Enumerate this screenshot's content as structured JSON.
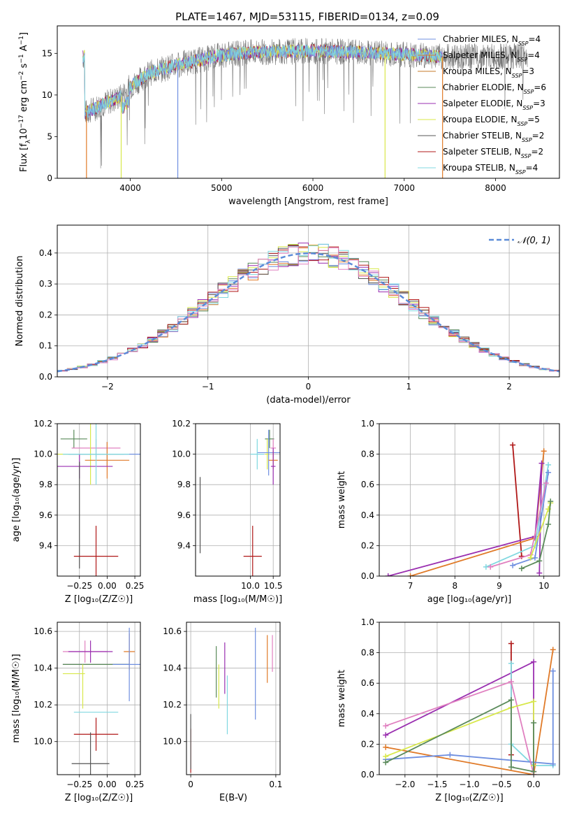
{
  "colors": {
    "chabrier_miles": "#6f8fe0",
    "salpeter_miles": "#e07a28",
    "kroupa_miles": "#c47a2a",
    "chabrier_elodie": "#5a8a5a",
    "salpeter_elodie": "#9a2fb0",
    "kroupa_elodie": "#d8e84a",
    "chabrier_stelib": "#555555",
    "salpeter_stelib": "#b01818",
    "kroupa_stelib": "#80d8e0",
    "pink": "#e080c0",
    "normal_curve": "#5b8bd8",
    "grid": "#b0b0b0"
  },
  "chart_data": [
    {
      "id": "spectrum",
      "type": "line",
      "title": "PLATE=1467, MJD=53115, FIBERID=0134, z=0.09",
      "xlabel": "wavelength [Angstrom, rest frame]",
      "ylabel_parts": [
        "Flux [f",
        "λ",
        "10",
        "−17",
        " erg cm",
        "−2",
        " s",
        "−1",
        " A",
        "−1",
        "]"
      ],
      "xlim": [
        3200,
        8700
      ],
      "ylim": [
        0,
        18.3
      ],
      "xticks": [
        4000,
        5000,
        6000,
        7000,
        8000
      ],
      "yticks": [
        0,
        5,
        10,
        15
      ],
      "grid": false,
      "legend_position": "right",
      "legend": [
        {
          "label": "Chabrier MILES, N",
          "sub": "SSP",
          "value": "=4",
          "color_key": "chabrier_miles"
        },
        {
          "label": "Salpeter MILES, N",
          "sub": "SSP",
          "value": "=4",
          "color_key": "salpeter_miles"
        },
        {
          "label": "Kroupa MILES, N",
          "sub": "SSP",
          "value": "=3",
          "color_key": "kroupa_miles"
        },
        {
          "label": "Chabrier ELODIE, N",
          "sub": "SSP",
          "value": "=6",
          "color_key": "chabrier_elodie"
        },
        {
          "label": "Salpeter ELODIE, N",
          "sub": "SSP",
          "value": "=3",
          "color_key": "salpeter_elodie"
        },
        {
          "label": "Kroupa ELODIE, N",
          "sub": "SSP",
          "value": "=5",
          "color_key": "kroupa_elodie"
        },
        {
          "label": "Chabrier STELIB, N",
          "sub": "SSP",
          "value": "=2",
          "color_key": "chabrier_stelib"
        },
        {
          "label": "Salpeter STELIB, N",
          "sub": "SSP",
          "value": "=2",
          "color_key": "salpeter_stelib"
        },
        {
          "label": "Kroupa STELIB, N",
          "sub": "SSP",
          "value": "=4",
          "color_key": "kroupa_stelib"
        }
      ],
      "continuum": {
        "x": [
          3500,
          3700,
          3900,
          4000,
          4200,
          4500,
          4800,
          5000,
          5300,
          5600,
          6000,
          6500,
          7000,
          7400
        ],
        "y": [
          7.8,
          8.9,
          9.8,
          11.0,
          12.6,
          13.6,
          14.3,
          14.8,
          15.1,
          15.2,
          15.3,
          15.1,
          14.9,
          14.6
        ]
      },
      "drops": [
        {
          "x": 3520,
          "color_key": "salpeter_miles"
        },
        {
          "x": 3900,
          "color_key": "kroupa_elodie"
        },
        {
          "x": 4520,
          "color_key": "chabrier_miles"
        },
        {
          "x": 6790,
          "color_key": "kroupa_elodie"
        },
        {
          "x": 7420,
          "color_key": "salpeter_miles"
        }
      ]
    },
    {
      "id": "residuals",
      "type": "histogram",
      "xlabel": "(data-model)/error",
      "ylabel": "Normed distribution",
      "xlim": [
        -2.5,
        2.5
      ],
      "ylim": [
        0,
        0.49
      ],
      "xticks": [
        -2,
        -1,
        0,
        1,
        2
      ],
      "xtick_labels": [
        "−2",
        "−1",
        "0",
        "1",
        "2"
      ],
      "yticks": [
        0.0,
        0.1,
        0.2,
        0.3,
        0.4
      ],
      "grid": true,
      "legend_position": "upper right",
      "legend_label": "𝒩(0, 1)",
      "bin_width": 0.1
    },
    {
      "id": "age_vs_Z",
      "type": "errorbar",
      "xlabel": "Z [log₁₀(Z/Z☉)]",
      "ylabel": "age  [log₁₀(age/yr)]",
      "xlim": [
        -0.45,
        0.3
      ],
      "ylim": [
        9.2,
        10.2
      ],
      "xticks": [
        -0.25,
        0.0,
        0.25
      ],
      "xtick_labels": [
        "−0.25",
        "0.00",
        "0.25"
      ],
      "yticks": [
        9.4,
        9.6,
        9.8,
        10.0,
        10.2
      ],
      "grid": true,
      "points": [
        {
          "x": -0.3,
          "xerr": 0.12,
          "y": 10.1,
          "yerr": 0.06,
          "color_key": "chabrier_elodie"
        },
        {
          "x": -0.1,
          "xerr": 0.22,
          "y": 10.04,
          "yerr": 0.06,
          "color_key": "pink"
        },
        {
          "x": -0.15,
          "xerr": 0.3,
          "y": 10.0,
          "yerr": 0.2,
          "color_key": "kroupa_elodie"
        },
        {
          "x": 0.0,
          "xerr": 0.35,
          "y": 10.0,
          "yerr": 0.08,
          "color_key": "chabrier_miles"
        },
        {
          "x": 0.0,
          "xerr": 0.2,
          "y": 9.96,
          "yerr": 0.12,
          "color_key": "salpeter_miles"
        },
        {
          "x": -0.25,
          "xerr": 0.3,
          "y": 9.92,
          "yerr": 0.08,
          "color_key": "salpeter_elodie"
        },
        {
          "x": -0.1,
          "xerr": 0.3,
          "y": 10.0,
          "yerr": 0.2,
          "color_key": "kroupa_stelib"
        },
        {
          "x": -0.25,
          "xerr": 0.0,
          "y": 9.6,
          "yerr": 0.35,
          "color_key": "chabrier_stelib"
        },
        {
          "x": -0.1,
          "xerr": 0.2,
          "y": 9.33,
          "yerr": 0.2,
          "color_key": "salpeter_stelib"
        }
      ]
    },
    {
      "id": "age_vs_mass",
      "type": "errorbar",
      "xlabel": "mass [log₁₀(M/M☉)]",
      "ylabel": "",
      "xlim": [
        8.8,
        10.65
      ],
      "ylim": [
        9.2,
        10.2
      ],
      "xticks": [
        10.0,
        10.5
      ],
      "xtick_labels": [
        "10.0",
        "10.5"
      ],
      "yticks": [
        9.4,
        9.6,
        9.8,
        10.0,
        10.2
      ],
      "grid": true,
      "points": [
        {
          "x": 10.42,
          "xerr": 0.1,
          "y": 10.1,
          "yerr": 0.06,
          "color_key": "chabrier_elodie"
        },
        {
          "x": 10.5,
          "xerr": 0.06,
          "y": 10.04,
          "yerr": 0.06,
          "color_key": "pink"
        },
        {
          "x": 10.37,
          "xerr": 0.05,
          "y": 10.0,
          "yerr": 0.1,
          "color_key": "kroupa_elodie"
        },
        {
          "x": 10.4,
          "xerr": 0.25,
          "y": 10.01,
          "yerr": 0.15,
          "color_key": "chabrier_miles"
        },
        {
          "x": 10.5,
          "xerr": 0.1,
          "y": 9.96,
          "yerr": 0.06,
          "color_key": "salpeter_miles"
        },
        {
          "x": 10.5,
          "xerr": 0.05,
          "y": 9.92,
          "yerr": 0.12,
          "color_key": "salpeter_elodie"
        },
        {
          "x": 10.15,
          "xerr": 0.15,
          "y": 10.0,
          "yerr": 0.1,
          "color_key": "kroupa_stelib"
        },
        {
          "x": 8.9,
          "xerr": 0.0,
          "y": 9.6,
          "yerr": 0.25,
          "color_key": "chabrier_stelib"
        },
        {
          "x": 10.05,
          "xerr": 0.2,
          "y": 9.33,
          "yerr": 0.2,
          "color_key": "salpeter_stelib"
        }
      ]
    },
    {
      "id": "mass_weight_vs_age",
      "type": "line",
      "xlabel": "age  [log₁₀(age/yr)]",
      "ylabel": "mass weight",
      "xlim": [
        6.3,
        10.35
      ],
      "ylim": [
        0,
        1
      ],
      "xticks": [
        7,
        8,
        9,
        10
      ],
      "yticks": [
        0.0,
        0.2,
        0.4,
        0.6,
        0.8,
        1.0
      ],
      "grid": true,
      "series": [
        {
          "color_key": "salpeter_stelib",
          "x": [
            9.3,
            9.5
          ],
          "y": [
            0.86,
            0.13
          ]
        },
        {
          "color_key": "salpeter_miles",
          "x": [
            7.0,
            9.8,
            10.0
          ],
          "y": [
            0.0,
            0.25,
            0.82
          ]
        },
        {
          "color_key": "salpeter_elodie",
          "x": [
            6.5,
            9.8,
            9.95,
            9.9
          ],
          "y": [
            0.0,
            0.26,
            0.74,
            0.02
          ]
        },
        {
          "color_key": "kroupa_stelib",
          "x": [
            8.7,
            9.8,
            10.1
          ],
          "y": [
            0.06,
            0.2,
            0.73
          ]
        },
        {
          "color_key": "chabrier_miles",
          "x": [
            9.3,
            9.8,
            10.1
          ],
          "y": [
            0.07,
            0.12,
            0.68
          ]
        },
        {
          "color_key": "pink",
          "x": [
            8.8,
            9.7,
            10.05
          ],
          "y": [
            0.06,
            0.14,
            0.61
          ]
        },
        {
          "color_key": "kroupa_elodie",
          "x": [
            9.7,
            10.1,
            10.15
          ],
          "y": [
            0.12,
            0.44,
            0.48
          ]
        },
        {
          "color_key": "chabrier_elodie",
          "x": [
            9.5,
            9.9,
            10.1,
            10.15
          ],
          "y": [
            0.05,
            0.1,
            0.34,
            0.49
          ]
        }
      ]
    },
    {
      "id": "mass_vs_Z",
      "type": "errorbar",
      "xlabel": "Z [log₁₀(Z/Z☉)]",
      "ylabel": "mass [log₁₀(M/M☉)]",
      "xlim": [
        -0.45,
        0.3
      ],
      "ylim": [
        9.82,
        10.65
      ],
      "xticks": [
        -0.25,
        0.0,
        0.25
      ],
      "xtick_labels": [
        "−0.25",
        "0.00",
        "0.25"
      ],
      "yticks": [
        10.0,
        10.2,
        10.4,
        10.6
      ],
      "grid": true,
      "points": [
        {
          "x": -0.2,
          "xerr": 0.2,
          "y": 10.49,
          "yerr": 0.06,
          "color_key": "pink"
        },
        {
          "x": -0.15,
          "xerr": 0.2,
          "y": 10.49,
          "yerr": 0.06,
          "color_key": "salpeter_elodie"
        },
        {
          "x": 0.2,
          "xerr": 0.05,
          "y": 10.49,
          "yerr": 0.1,
          "color_key": "salpeter_miles"
        },
        {
          "x": -0.1,
          "xerr": 0.3,
          "y": 10.42,
          "yerr": 0.0,
          "color_key": "chabrier_stelib"
        },
        {
          "x": -0.1,
          "xerr": 0.3,
          "y": 10.42,
          "yerr": 0.0,
          "color_key": "chabrier_elodie"
        },
        {
          "x": 0.2,
          "xerr": 0.15,
          "y": 10.42,
          "yerr": 0.2,
          "color_key": "chabrier_miles"
        },
        {
          "x": -0.3,
          "xerr": 0.1,
          "y": 10.37,
          "yerr": 0.0,
          "color_key": "kroupa_elodie"
        },
        {
          "x": -0.22,
          "xerr": 0.0,
          "y": 10.3,
          "yerr": 0.12,
          "color_key": "kroupa_elodie"
        },
        {
          "x": -0.1,
          "xerr": 0.2,
          "y": 10.16,
          "yerr": 0.0,
          "color_key": "kroupa_stelib"
        },
        {
          "x": -0.1,
          "xerr": 0.2,
          "y": 10.04,
          "yerr": 0.09,
          "color_key": "salpeter_stelib"
        },
        {
          "x": -0.15,
          "xerr": 0.17,
          "y": 9.88,
          "yerr": 0.17,
          "color_key": "chabrier_stelib"
        }
      ]
    },
    {
      "id": "mass_vs_ebv",
      "type": "errorbar",
      "xlabel": "E(B-V)",
      "ylabel": "",
      "xlim": [
        -0.005,
        0.105
      ],
      "ylim": [
        9.82,
        10.65
      ],
      "xticks": [
        0,
        0.1
      ],
      "xtick_labels": [
        "0",
        "0.1"
      ],
      "yticks": [
        10.0,
        10.2,
        10.4,
        10.6
      ],
      "grid": true,
      "points": [
        {
          "x": 0.0,
          "xerr": 0.0,
          "y": 9.95,
          "yerr": 0.12,
          "color_key": "salpeter_stelib"
        },
        {
          "x": 0.0,
          "xerr": 0.0,
          "y": 10.0,
          "yerr": 0.15,
          "color_key": "chabrier_stelib"
        },
        {
          "x": 0.03,
          "xerr": 0.0,
          "y": 10.38,
          "yerr": 0.14,
          "color_key": "chabrier_elodie"
        },
        {
          "x": 0.033,
          "xerr": 0.0,
          "y": 10.3,
          "yerr": 0.12,
          "color_key": "kroupa_elodie"
        },
        {
          "x": 0.04,
          "xerr": 0.0,
          "y": 10.4,
          "yerr": 0.14,
          "color_key": "salpeter_elodie"
        },
        {
          "x": 0.043,
          "xerr": 0.0,
          "y": 10.2,
          "yerr": 0.16,
          "color_key": "kroupa_stelib"
        },
        {
          "x": 0.076,
          "xerr": 0.0,
          "y": 10.37,
          "yerr": 0.25,
          "color_key": "chabrier_miles"
        },
        {
          "x": 0.09,
          "xerr": 0.0,
          "y": 10.45,
          "yerr": 0.13,
          "color_key": "salpeter_miles"
        },
        {
          "x": 0.096,
          "xerr": 0.0,
          "y": 10.48,
          "yerr": 0.1,
          "color_key": "pink"
        }
      ]
    },
    {
      "id": "mass_weight_vs_Z",
      "type": "line",
      "xlabel": "Z [log₁₀(Z/Z☉)]",
      "ylabel": "mass weight",
      "xlim": [
        -2.4,
        0.4
      ],
      "ylim": [
        0,
        1
      ],
      "xticks": [
        -2.0,
        -1.5,
        -1.0,
        -0.5,
        0.0
      ],
      "xtick_labels": [
        "−2.0",
        "−1.5",
        "−1.0",
        "−0.5",
        "0.0"
      ],
      "yticks": [
        0.0,
        0.2,
        0.4,
        0.6,
        0.8,
        1.0
      ],
      "grid": true,
      "series": [
        {
          "color_key": "salpeter_stelib",
          "x": [
            -0.35,
            -0.35
          ],
          "y": [
            0.86,
            0.13
          ]
        },
        {
          "color_key": "salpeter_miles",
          "x": [
            -2.3,
            0.0,
            0.3
          ],
          "y": [
            0.18,
            0.0,
            0.82
          ]
        },
        {
          "color_key": "salpeter_elodie",
          "x": [
            -2.3,
            0.0,
            0.0
          ],
          "y": [
            0.26,
            0.74,
            0.02
          ]
        },
        {
          "color_key": "kroupa_stelib",
          "x": [
            -0.35,
            -0.35,
            0.0,
            0.3
          ],
          "y": [
            0.73,
            0.2,
            0.06,
            0.06
          ]
        },
        {
          "color_key": "chabrier_miles",
          "x": [
            -2.3,
            -1.3,
            0.3,
            0.3
          ],
          "y": [
            0.1,
            0.13,
            0.07,
            0.68
          ]
        },
        {
          "color_key": "pink",
          "x": [
            -2.3,
            -0.35,
            0.0
          ],
          "y": [
            0.32,
            0.61,
            0.0
          ]
        },
        {
          "color_key": "kroupa_elodie",
          "x": [
            -2.3,
            -0.35,
            0.0,
            0.0
          ],
          "y": [
            0.12,
            0.44,
            0.48,
            0.06
          ]
        },
        {
          "color_key": "chabrier_elodie",
          "x": [
            -2.3,
            -0.35,
            -0.35,
            0.0,
            0.0
          ],
          "y": [
            0.08,
            0.49,
            0.05,
            0.02,
            0.34
          ]
        }
      ]
    }
  ]
}
